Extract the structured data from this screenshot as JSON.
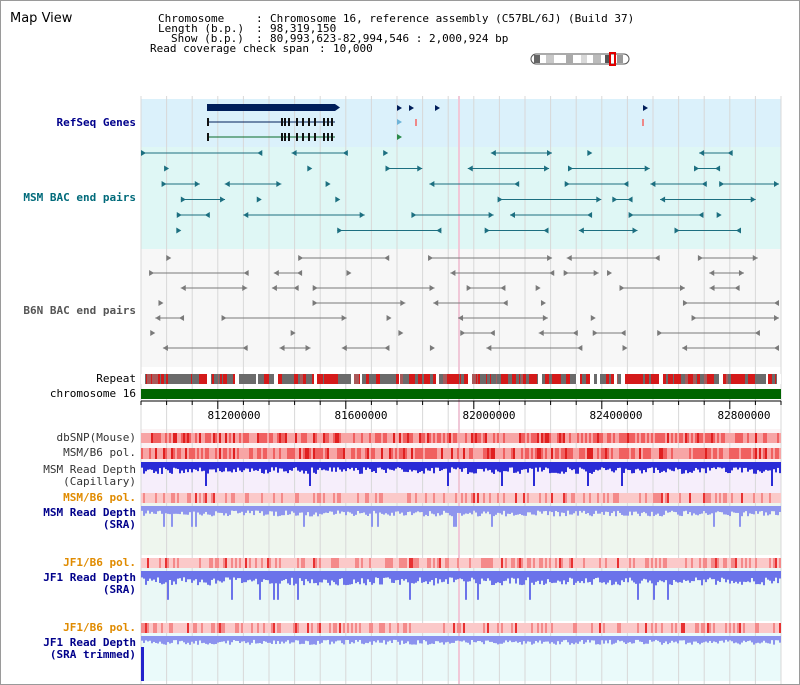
{
  "header": {
    "title": "Map View",
    "chromosome_key": "Chromosome",
    "chromosome_value": "Chromosome 16, reference assembly (C57BL/6J) (Build 37)",
    "length_key": "Length (b.p.)",
    "length_value": "98,319,150",
    "show_key": "Show (b.p.)",
    "show_value": "80,993,623-82,994,546 : 2,000,924 bp",
    "coverage_key": "Read coverage check span",
    "coverage_value": "10,000"
  },
  "tracks": {
    "refseq": "RefSeq Genes",
    "msm_bac": "MSM BAC end pairs",
    "b6n_bac": "B6N BAC end pairs",
    "repeat": "Repeat",
    "chromosome": "chromosome 16",
    "dbsnp": "dbSNP(Mouse)",
    "msm_b6_pol_1": "MSM/B6 pol.",
    "msm_depth_cap_1": "MSM Read Depth",
    "msm_depth_cap_2": "(Capillary)",
    "msm_b6_pol_2": "MSM/B6 pol.",
    "msm_depth_sra_1": "MSM Read Depth",
    "msm_depth_sra_2": "(SRA)",
    "jf1_b6_pol_1": "JF1/B6 pol.",
    "jf1_depth_1": "JF1 Read Depth",
    "jf1_depth_2": "(SRA)",
    "jf1_b6_pol_2": "JF1/B6 pol.",
    "jf1_trim_1": "JF1 Read Depth",
    "jf1_trim_2": "(SRA trimmed)"
  },
  "axis": {
    "ticks": [
      "81200000",
      "81600000",
      "82000000",
      "82400000",
      "82800000"
    ]
  },
  "colors": {
    "refseq_bg": "#dbf1fb",
    "msm_bac_bg": "#dff7f5",
    "gene": "#001e5a",
    "msm_feature": "#1c6f80",
    "b6n_feature": "#7a7a7a",
    "chromosome_band": "#006400",
    "depth_blue": "#2b2bd6",
    "sra_blue": "#8e95ee"
  }
}
